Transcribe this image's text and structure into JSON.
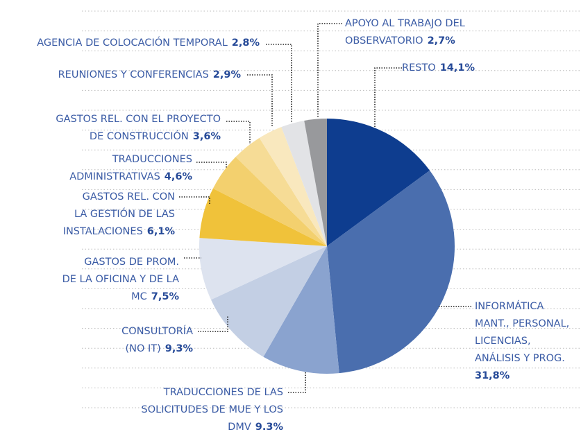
{
  "chart_data": {
    "type": "pie",
    "categories": [
      [
        "RESTO"
      ],
      [
        "INFORMÁTICA",
        "MANT., PERSONAL,",
        "LICENCIAS,",
        "ANÁLISIS Y PROG."
      ],
      [
        "TRADUCCIONES DE LAS",
        "SOLICITUDES DE MUE Y LOS",
        "DMV"
      ],
      [
        "CONSULTORÍA",
        "(NO IT)"
      ],
      [
        "GASTOS DE PROM.",
        "DE LA OFICINA Y DE LA",
        "MC"
      ],
      [
        "GASTOS REL. CON",
        "LA GESTIÓN DE LAS",
        "INSTALACIONES"
      ],
      [
        "TRADUCCIONES",
        "ADMINISTRATIVAS"
      ],
      [
        "GASTOS REL. CON EL PROYECTO",
        "DE CONSTRUCCIÓN"
      ],
      [
        "REUNIONES Y CONFERENCIAS"
      ],
      [
        "AGENCIA DE COLOCACIÓN TEMPORAL"
      ],
      [
        "APOYO AL TRABAJO DEL",
        "OBSERVATORIO"
      ]
    ],
    "values": [
      14.1,
      31.8,
      9.3,
      9.3,
      7.5,
      6.1,
      4.6,
      3.6,
      2.9,
      2.8,
      2.7
    ],
    "value_labels": [
      "14,1%",
      "31,8%",
      "9.3%",
      "9,3%",
      "7,5%",
      "6,1%",
      "4,6%",
      "3,6%",
      "2,9%",
      "2,8%",
      "2,7%"
    ],
    "colors": [
      "#0e3d8f",
      "#4a6eae",
      "#8aa3cf",
      "#c3cfe4",
      "#dde3ef",
      "#f0c23a",
      "#f3d06e",
      "#f6dc96",
      "#f9e8be",
      "#e2e3e6",
      "#98999c"
    ]
  }
}
